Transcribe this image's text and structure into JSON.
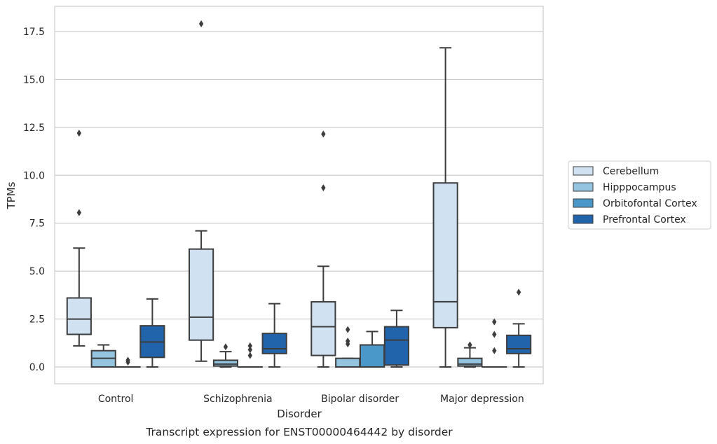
{
  "caption": "Transcript expression for ENST00000464442 by disorder",
  "chart_data": {
    "type": "boxplot",
    "xlabel": "Disorder",
    "ylabel": "TPMs",
    "ylim": [
      -0.85,
      18.8
    ],
    "yticks": [
      "0.0",
      "2.5",
      "5.0",
      "7.5",
      "10.0",
      "12.5",
      "15.0",
      "17.5"
    ],
    "ytick_values": [
      0,
      2.5,
      5,
      7.5,
      10,
      12.5,
      15,
      17.5
    ],
    "grid": "horizontal",
    "legend_position": "right",
    "categories": [
      "Control",
      "Schizophrenia",
      "Bipolar disorder",
      "Major depression"
    ],
    "series": [
      {
        "name": "Cerebellum",
        "color": "#d0e1f2",
        "boxes": [
          {
            "whislo": 1.1,
            "q1": 1.7,
            "med": 2.5,
            "q3": 3.6,
            "whishi": 6.2,
            "fliers": [
              8.05,
              12.2
            ]
          },
          {
            "whislo": 0.3,
            "q1": 1.4,
            "med": 2.6,
            "q3": 6.15,
            "whishi": 7.1,
            "fliers": [
              17.9
            ]
          },
          {
            "whislo": 0.0,
            "q1": 0.6,
            "med": 2.1,
            "q3": 3.4,
            "whishi": 5.25,
            "fliers": [
              9.35,
              12.15
            ]
          },
          {
            "whislo": 0.0,
            "q1": 2.05,
            "med": 3.4,
            "q3": 9.6,
            "whishi": 16.65,
            "fliers": []
          }
        ]
      },
      {
        "name": "Hipppocampus",
        "color": "#94c4df",
        "boxes": [
          {
            "whislo": 0.0,
            "q1": 0.0,
            "med": 0.45,
            "q3": 0.85,
            "whishi": 1.15,
            "fliers": []
          },
          {
            "whislo": 0.0,
            "q1": 0.05,
            "med": 0.15,
            "q3": 0.35,
            "whishi": 0.8,
            "fliers": [
              1.05
            ]
          },
          {
            "whislo": 0.0,
            "q1": 0.0,
            "med": 0.0,
            "q3": 0.45,
            "whishi": 0.45,
            "fliers": [
              1.2,
              1.35,
              1.95
            ]
          },
          {
            "whislo": 0.0,
            "q1": 0.05,
            "med": 0.15,
            "q3": 0.45,
            "whishi": 1.0,
            "fliers": [
              1.15
            ]
          }
        ]
      },
      {
        "name": "Orbitofontal Cortex",
        "color": "#4a98c9",
        "boxes": [
          {
            "whislo": 0.0,
            "q1": 0.0,
            "med": 0.0,
            "q3": 0.0,
            "whishi": 0.0,
            "fliers": [
              0.25,
              0.35
            ]
          },
          {
            "whislo": 0.0,
            "q1": 0.0,
            "med": 0.0,
            "q3": 0.0,
            "whishi": 0.0,
            "fliers": [
              0.6,
              0.9,
              1.1
            ]
          },
          {
            "whislo": 0.0,
            "q1": 0.0,
            "med": 0.0,
            "q3": 1.15,
            "whishi": 1.85,
            "fliers": []
          },
          {
            "whislo": 0.0,
            "q1": 0.0,
            "med": 0.0,
            "q3": 0.0,
            "whishi": 0.0,
            "fliers": [
              0.85,
              1.7,
              2.35
            ]
          }
        ]
      },
      {
        "name": "Prefrontal Cortex",
        "color": "#2264ab",
        "boxes": [
          {
            "whislo": 0.0,
            "q1": 0.5,
            "med": 1.3,
            "q3": 2.15,
            "whishi": 3.55,
            "fliers": []
          },
          {
            "whislo": 0.0,
            "q1": 0.7,
            "med": 0.95,
            "q3": 1.75,
            "whishi": 3.3,
            "fliers": []
          },
          {
            "whislo": 0.0,
            "q1": 0.1,
            "med": 1.4,
            "q3": 2.1,
            "whishi": 2.95,
            "fliers": []
          },
          {
            "whislo": 0.0,
            "q1": 0.7,
            "med": 0.95,
            "q3": 1.65,
            "whishi": 2.25,
            "fliers": [
              3.9
            ]
          }
        ]
      }
    ]
  },
  "colors": {
    "grid": "#cccccc",
    "frame": "#cccccc",
    "stroke": "#3d3d3d"
  }
}
